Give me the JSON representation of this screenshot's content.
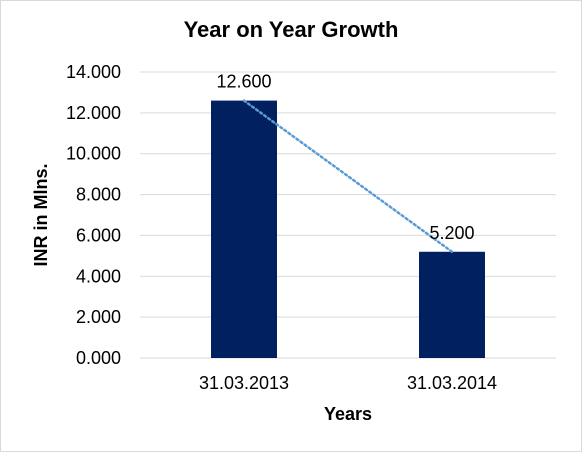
{
  "chart_data": {
    "type": "bar",
    "title": "Year on Year Growth",
    "xlabel": "Years",
    "ylabel": "INR in Mlns.",
    "categories": [
      "31.03.2013",
      "31.03.2014"
    ],
    "values": [
      12.6,
      5.2
    ],
    "value_labels": [
      "12.600",
      "5.200"
    ],
    "ylim": [
      0,
      14
    ],
    "y_ticks": [
      {
        "value": 0,
        "label": "0.000"
      },
      {
        "value": 2,
        "label": "2.000"
      },
      {
        "value": 4,
        "label": "4.000"
      },
      {
        "value": 6,
        "label": "6.000"
      },
      {
        "value": 8,
        "label": "8.000"
      },
      {
        "value": 10,
        "label": "10.000"
      },
      {
        "value": 12,
        "label": "12.000"
      },
      {
        "value": 14,
        "label": "14.000"
      }
    ],
    "grid": true,
    "trendline": {
      "type": "linear",
      "style": "dotted"
    },
    "colors": {
      "bar": "#002060",
      "grid": "#d9d9d9",
      "trendline": "#5b9bd5"
    }
  }
}
